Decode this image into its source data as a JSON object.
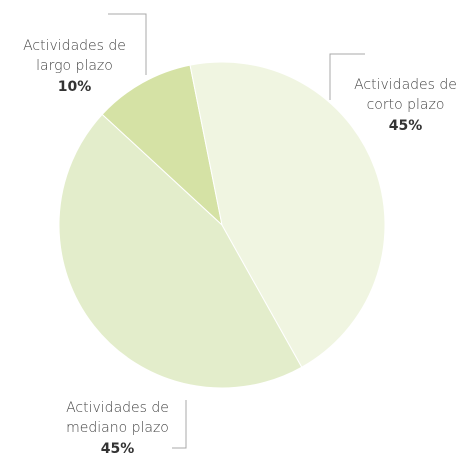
{
  "chart_data": {
    "type": "pie",
    "categories": [
      "Actividades de corto plazo",
      "Actividades de mediano plazo",
      "Actividades de largo plazo"
    ],
    "values": [
      45,
      45,
      10
    ],
    "value_labels": [
      "45%",
      "45%",
      "10%"
    ],
    "colors": [
      "#f0f5e1",
      "#e3edcb",
      "#d5e2a5"
    ]
  }
}
